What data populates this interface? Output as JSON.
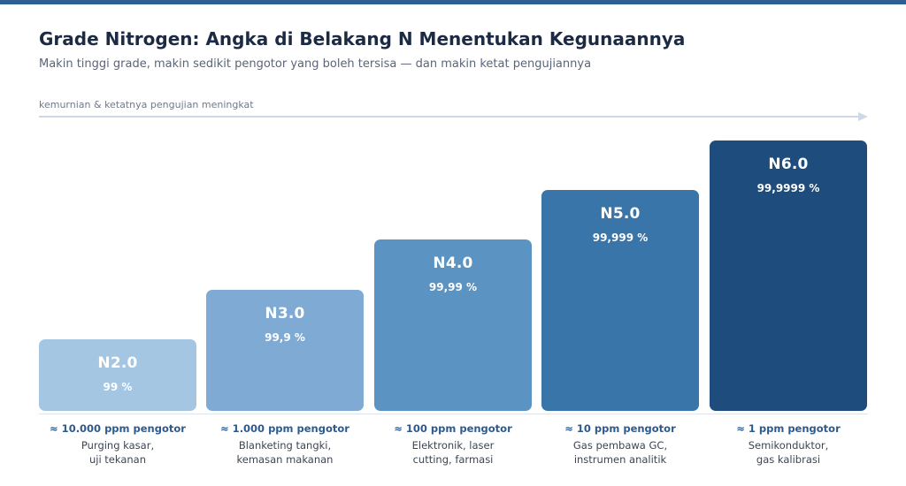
{
  "header": {
    "title": "Grade Nitrogen: Angka di Belakang N Menentukan Kegunaannya",
    "subtitle": "Makin tinggi grade, makin sedikit pengotor yang boleh tersisa — dan makin ketat pengujiannya",
    "arrow_label": "kemurnian & ketatnya pengujian meningkat"
  },
  "colors": {
    "top_bar": "#2f5f93",
    "arrow": "#cdd9e6",
    "ppm_text": "#2c5a8d"
  },
  "grades": [
    {
      "grade": "N2.0",
      "purity": "99 %",
      "impurity": "≈ 10.000 ppm pengotor",
      "usage": "Purging kasar,\nuji tekanan",
      "color": "#a4c6e2",
      "purity_color": "#ffffff"
    },
    {
      "grade": "N3.0",
      "purity": "99,9 %",
      "impurity": "≈ 1.000 ppm pengotor",
      "usage": "Blanketing tangki,\nkemasan makanan",
      "color": "#7eaad4",
      "purity_color": "#ffffff"
    },
    {
      "grade": "N4.0",
      "purity": "99,99 %",
      "impurity": "≈ 100 ppm pengotor",
      "usage": "Elektronik, laser\ncutting, farmasi",
      "color": "#5b93c3",
      "purity_color": "#ffffff"
    },
    {
      "grade": "N5.0",
      "purity": "99,999 %",
      "impurity": "≈ 10 ppm pengotor",
      "usage": "Gas pembawa GC,\ninstrumen analitik",
      "color": "#3a75aa",
      "purity_color": "#ffffff"
    },
    {
      "grade": "N6.0",
      "purity": "99,9999 %",
      "impurity": "≈ 1 ppm pengotor",
      "usage": "Semikonduktor,\ngas kalibrasi",
      "color": "#1d4c7d",
      "purity_color": "#ffffff"
    }
  ]
}
